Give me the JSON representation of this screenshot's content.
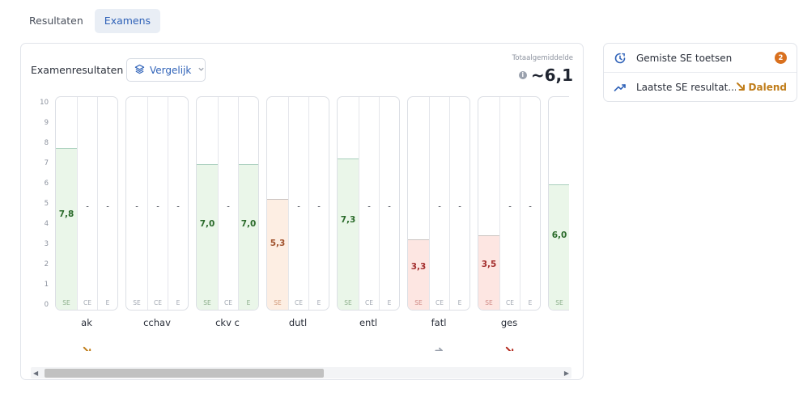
{
  "tabs": [
    {
      "label": "Resultaten",
      "active": false
    },
    {
      "label": "Examens",
      "active": true
    }
  ],
  "main": {
    "title": "Examenresultaten",
    "compare_label": "Vergelijk",
    "average_label": "Totaalgemiddelde",
    "average_value": "~6,1"
  },
  "chart_data": {
    "type": "bar",
    "ylim": [
      0,
      10
    ],
    "y_ticks": [
      "0",
      "1",
      "2",
      "3",
      "4",
      "5",
      "6",
      "7",
      "8",
      "9",
      "10"
    ],
    "column_labels": [
      "SE",
      "CE",
      "E"
    ],
    "subjects": [
      {
        "name": "ak",
        "trend": "down",
        "trend_color": "#c07d1a",
        "bars": [
          {
            "label": "SE",
            "value": 7.8,
            "text": "7,8",
            "tone": "green"
          },
          {
            "label": "CE",
            "value": null,
            "text": "-",
            "tone": "none"
          },
          {
            "label": "E",
            "value": null,
            "text": "-",
            "tone": "none"
          }
        ]
      },
      {
        "name": "cchav",
        "trend": "",
        "trend_color": "",
        "bars": [
          {
            "label": "SE",
            "value": null,
            "text": "-",
            "tone": "none"
          },
          {
            "label": "CE",
            "value": null,
            "text": "-",
            "tone": "none"
          },
          {
            "label": "E",
            "value": null,
            "text": "-",
            "tone": "none"
          }
        ]
      },
      {
        "name": "ckv c",
        "trend": "",
        "trend_color": "",
        "bars": [
          {
            "label": "SE",
            "value": 7.0,
            "text": "7,0",
            "tone": "green"
          },
          {
            "label": "CE",
            "value": null,
            "text": "-",
            "tone": "none"
          },
          {
            "label": "E",
            "value": 7.0,
            "text": "7,0",
            "tone": "green"
          }
        ]
      },
      {
        "name": "dutl",
        "trend": "",
        "trend_color": "",
        "bars": [
          {
            "label": "SE",
            "value": 5.3,
            "text": "5,3",
            "tone": "orange"
          },
          {
            "label": "CE",
            "value": null,
            "text": "-",
            "tone": "none"
          },
          {
            "label": "E",
            "value": null,
            "text": "-",
            "tone": "none"
          }
        ]
      },
      {
        "name": "entl",
        "trend": "",
        "trend_color": "",
        "bars": [
          {
            "label": "SE",
            "value": 7.3,
            "text": "7,3",
            "tone": "green"
          },
          {
            "label": "CE",
            "value": null,
            "text": "-",
            "tone": "none"
          },
          {
            "label": "E",
            "value": null,
            "text": "-",
            "tone": "none"
          }
        ]
      },
      {
        "name": "fatl",
        "trend": "flat",
        "trend_color": "#9aa1ad",
        "bars": [
          {
            "label": "SE",
            "value": 3.3,
            "text": "3,3",
            "tone": "red"
          },
          {
            "label": "CE",
            "value": null,
            "text": "-",
            "tone": "none"
          },
          {
            "label": "E",
            "value": null,
            "text": "-",
            "tone": "none"
          }
        ]
      },
      {
        "name": "ges",
        "trend": "down",
        "trend_color": "#b32a1e",
        "bars": [
          {
            "label": "SE",
            "value": 3.5,
            "text": "3,5",
            "tone": "red"
          },
          {
            "label": "CE",
            "value": null,
            "text": "-",
            "tone": "none"
          },
          {
            "label": "E",
            "value": null,
            "text": "-",
            "tone": "none"
          }
        ]
      },
      {
        "name": "",
        "trend": "",
        "trend_color": "",
        "bars": [
          {
            "label": "SE",
            "value": 6.0,
            "text": "6,0",
            "tone": "green"
          }
        ]
      }
    ]
  },
  "side": {
    "missed_label": "Gemiste SE toetsen",
    "missed_count": "2",
    "latest_label": "Laatste SE resultat...",
    "latest_status": "Dalend"
  },
  "colors": {
    "accent": "#2f62b8",
    "badge": "#d9701e",
    "dalend": "#c07d1a"
  }
}
